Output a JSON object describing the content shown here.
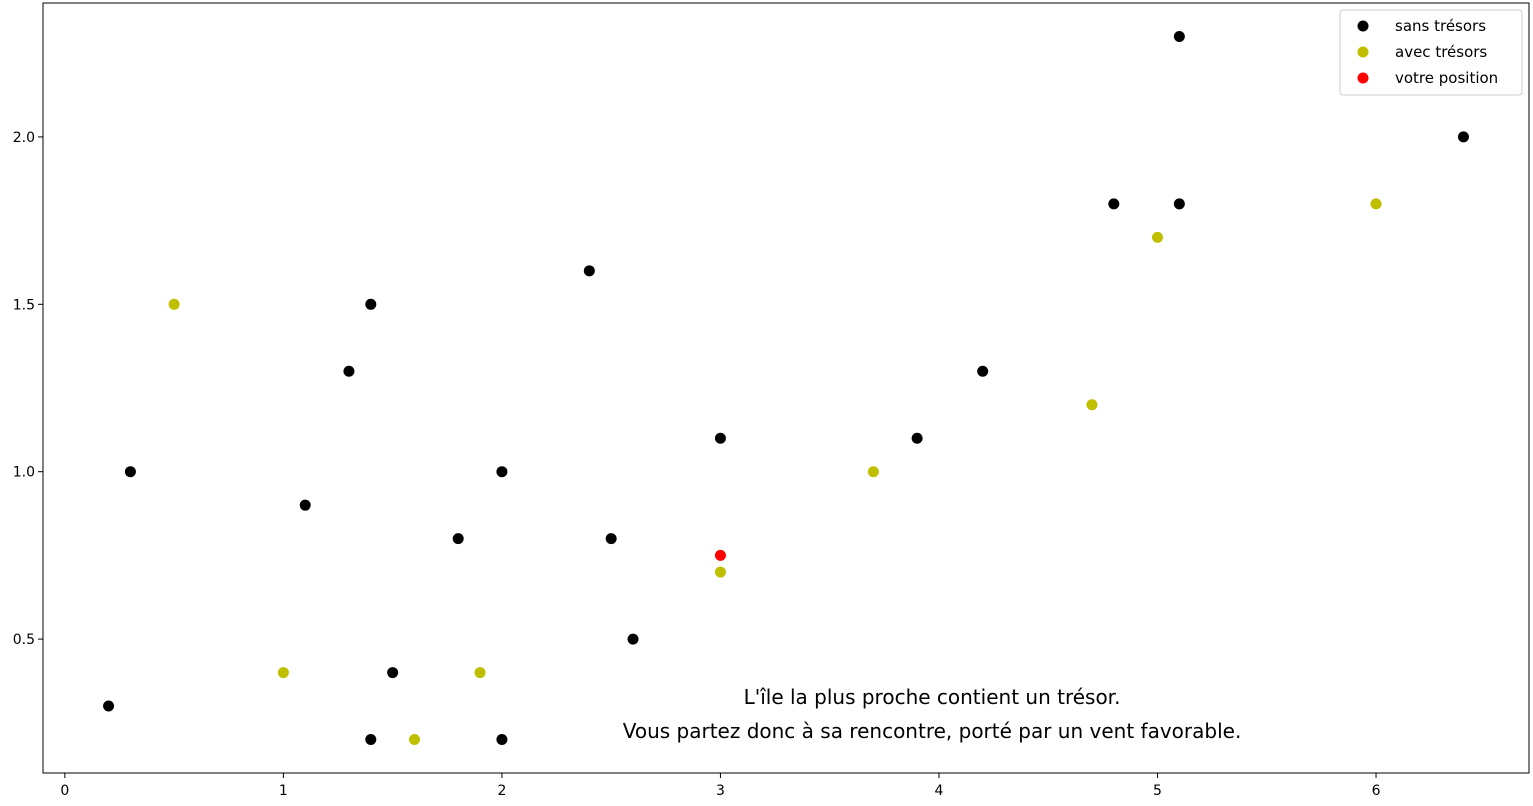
{
  "chart_data": {
    "type": "scatter",
    "title": "",
    "xlabel": "",
    "ylabel": "",
    "xlim": [
      -0.1,
      6.7
    ],
    "ylim": [
      0.1,
      2.4
    ],
    "xticks": [
      "0",
      "1",
      "2",
      "3",
      "4",
      "5",
      "6"
    ],
    "yticks": [
      "0.5",
      "1.0",
      "1.5",
      "2.0"
    ],
    "xtick_values": [
      0,
      1,
      2,
      3,
      4,
      5,
      6
    ],
    "ytick_values": [
      0.5,
      1.0,
      1.5,
      2.0
    ],
    "grid": false,
    "legend_position": "top-right",
    "series": [
      {
        "name": "sans trésors",
        "color": "#000000",
        "points": [
          [
            0.2,
            0.3
          ],
          [
            0.3,
            1.0
          ],
          [
            1.1,
            0.9
          ],
          [
            1.3,
            1.3
          ],
          [
            1.4,
            1.5
          ],
          [
            1.4,
            0.2
          ],
          [
            1.5,
            0.4
          ],
          [
            1.8,
            0.8
          ],
          [
            2.0,
            1.0
          ],
          [
            2.0,
            0.2
          ],
          [
            2.4,
            1.6
          ],
          [
            2.5,
            0.8
          ],
          [
            2.6,
            0.5
          ],
          [
            3.0,
            1.1
          ],
          [
            3.9,
            1.1
          ],
          [
            4.2,
            1.3
          ],
          [
            4.8,
            1.8
          ],
          [
            5.1,
            1.8
          ],
          [
            5.1,
            2.3
          ],
          [
            6.4,
            2.0
          ]
        ]
      },
      {
        "name": "avec trésors",
        "color": "#bfbf00",
        "points": [
          [
            0.5,
            1.5
          ],
          [
            1.0,
            0.4
          ],
          [
            1.6,
            0.2
          ],
          [
            1.9,
            0.4
          ],
          [
            3.0,
            0.7
          ],
          [
            3.7,
            1.0
          ],
          [
            4.7,
            1.2
          ],
          [
            5.0,
            1.7
          ],
          [
            6.0,
            1.8
          ]
        ]
      },
      {
        "name": "votre position",
        "color": "#ff0000",
        "points": [
          [
            3.0,
            0.75
          ]
        ]
      }
    ],
    "annotations": [
      "L'île la plus proche contient un trésor.",
      "Vous partez donc à sa rencontre, porté par un vent favorable."
    ]
  }
}
